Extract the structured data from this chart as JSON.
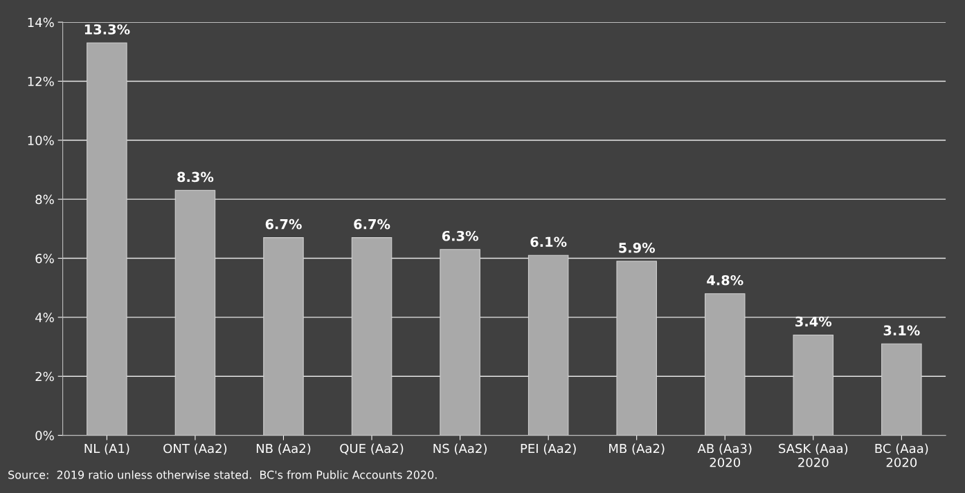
{
  "chart_data": {
    "type": "bar",
    "categories": [
      "NL (A1)",
      "ONT (Aa2)",
      "NB (Aa2)",
      "QUE (Aa2)",
      "NS (Aa2)",
      "PEI (Aa2)",
      "MB (Aa2)",
      "AB (Aa3)\n2020",
      "SASK (Aaa)\n2020",
      "BC (Aaa)\n2020"
    ],
    "values": [
      13.3,
      8.3,
      6.7,
      6.7,
      6.3,
      6.1,
      5.9,
      4.8,
      3.4,
      3.1
    ],
    "value_labels": [
      "13.3%",
      "8.3%",
      "6.7%",
      "6.7%",
      "6.3%",
      "6.1%",
      "5.9%",
      "4.8%",
      "3.4%",
      "3.1%"
    ],
    "color": "#a9a9a9",
    "ylim": [
      0,
      14
    ],
    "yticks": [
      {
        "value": 0,
        "label": "0%"
      },
      {
        "value": 2,
        "label": "2%"
      },
      {
        "value": 4,
        "label": "4%"
      },
      {
        "value": 6,
        "label": "6%"
      },
      {
        "value": 8,
        "label": "8%"
      },
      {
        "value": 10,
        "label": "10%"
      },
      {
        "value": 12,
        "label": "12%"
      },
      {
        "value": 14,
        "label": "14%"
      }
    ],
    "grid": "y",
    "annotations": [
      "Source:  2019 ratio unless otherwise stated.  BC's from Public Accounts 2020."
    ]
  }
}
